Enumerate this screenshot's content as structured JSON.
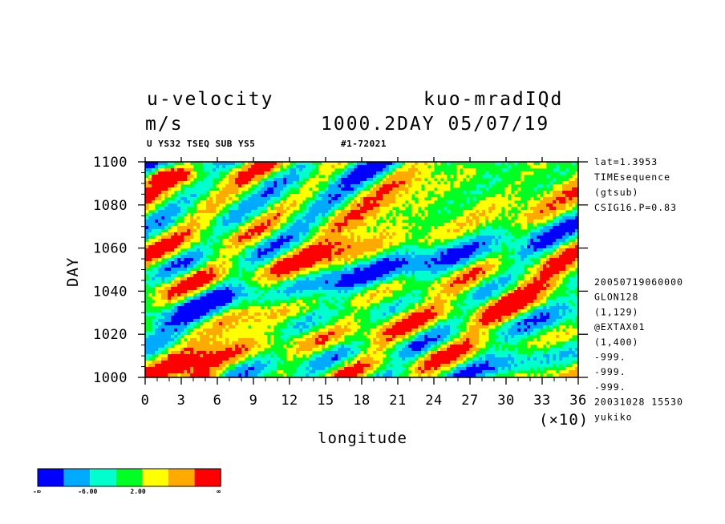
{
  "header": {
    "title_left": "u-velocity",
    "title_right": "kuo-mradIQd",
    "units": "m/s",
    "time_label": "1000.2DAY 05/07/19",
    "subheader_left": "U YS32 TSEQ SUB YS5",
    "subheader_right": "#1-72021"
  },
  "side_info": {
    "top": [
      "lat=1.3953",
      "TIMEsequence",
      "(gtsub)",
      "CSIG16.P=0.83"
    ],
    "bottom": [
      "20050719060000",
      "GLON128",
      "(1,129)",
      "@EXTAX01",
      "(1,400)",
      "-999.",
      "-999.",
      "-999.",
      "20031028  15530",
      "yukiko"
    ]
  },
  "colorbar": {
    "colors": [
      "#0000ff",
      "#00aaff",
      "#00ffcc",
      "#00ff22",
      "#ffff00",
      "#ffaa00",
      "#ff0000"
    ],
    "labels": [
      "-∞",
      "-6.00",
      "2.00",
      "∞"
    ]
  },
  "chart_data": {
    "type": "heatmap",
    "title": "u-velocity",
    "units": "m/s",
    "xlabel": "longitude",
    "x_multiplier_label": "(×10)",
    "ylabel": "DAY",
    "xlim": [
      0,
      36
    ],
    "ylim": [
      1000,
      1100
    ],
    "x_ticks": [
      0,
      3,
      6,
      9,
      12,
      15,
      18,
      21,
      24,
      27,
      30,
      33,
      36
    ],
    "y_ticks": [
      1000,
      1020,
      1040,
      1060,
      1080,
      1100
    ],
    "color_levels": [
      "-inf",
      "-6.00",
      "2.00",
      "inf"
    ],
    "pattern": "eastward-tilted streaks (features drift eastward with time); mostly green/cyan/yellow, strong red maxima near lon 10-60 at day 1060-1080, lon 75-95 at day 1045, lon 185 at day 1067"
  }
}
